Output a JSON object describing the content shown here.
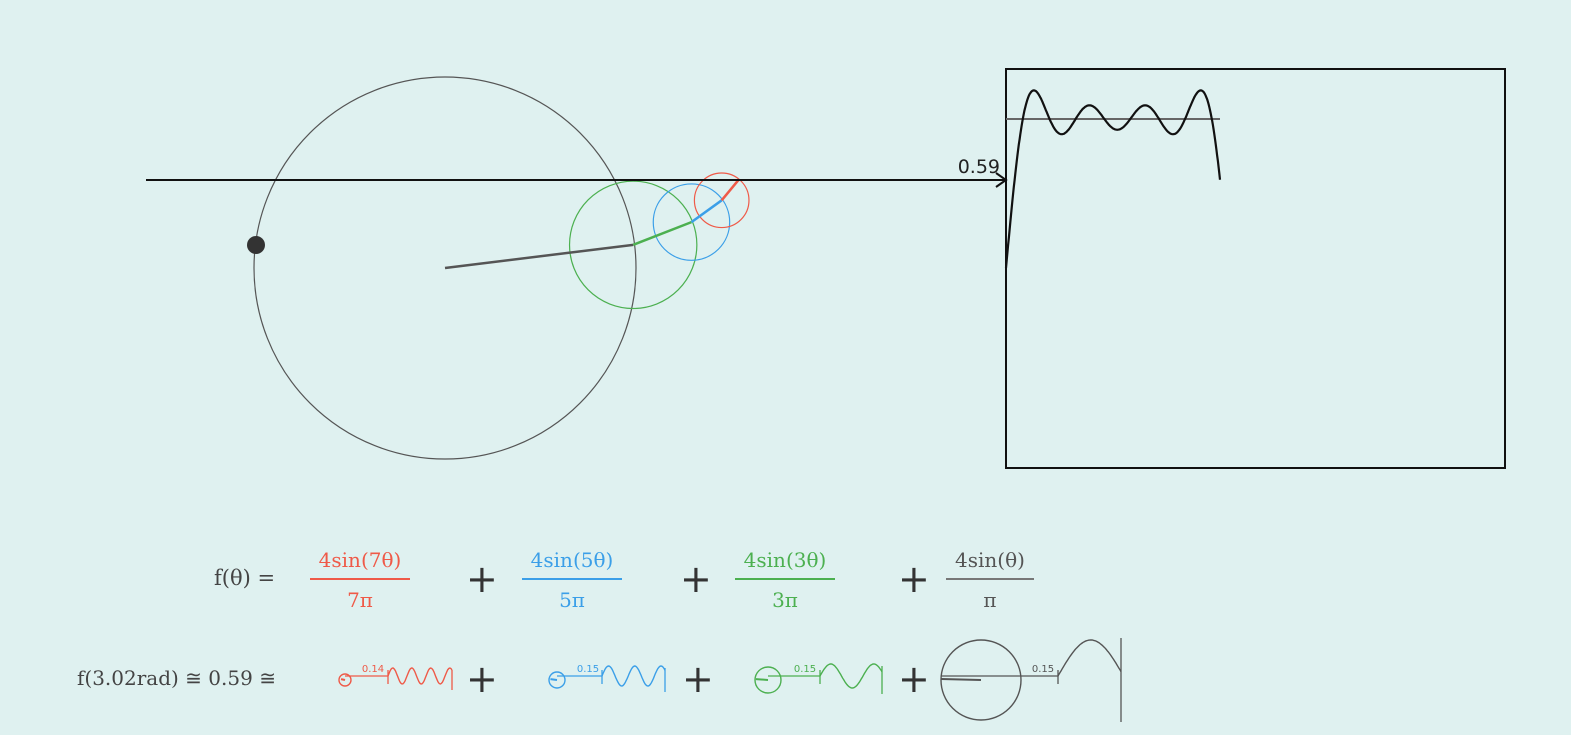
{
  "readout_value": "0.59",
  "formula": {
    "lhs": "f(θ) =",
    "terms": [
      {
        "numerator": "4sin(7θ)",
        "denominator": "7π",
        "color": "#ef5a48",
        "n": 7
      },
      {
        "numerator": "4sin(5θ)",
        "denominator": "5π",
        "color": "#3b9fe8",
        "n": 5
      },
      {
        "numerator": "4sin(3θ)",
        "denominator": "3π",
        "color": "#4cb050",
        "n": 3
      },
      {
        "numerator": "4sin(θ)",
        "denominator": "π",
        "color": "#555555",
        "n": 1
      }
    ],
    "plus": "+"
  },
  "evaluation": {
    "label": "f(3.02rad) ≅ 0.59 ≅",
    "theta": 3.02,
    "term_values": [
      "0.14",
      "0.15",
      "0.15",
      "0.15"
    ]
  },
  "colors": {
    "background": "#dff1f0",
    "plot_frame": "#111111",
    "curve": "#111111"
  }
}
